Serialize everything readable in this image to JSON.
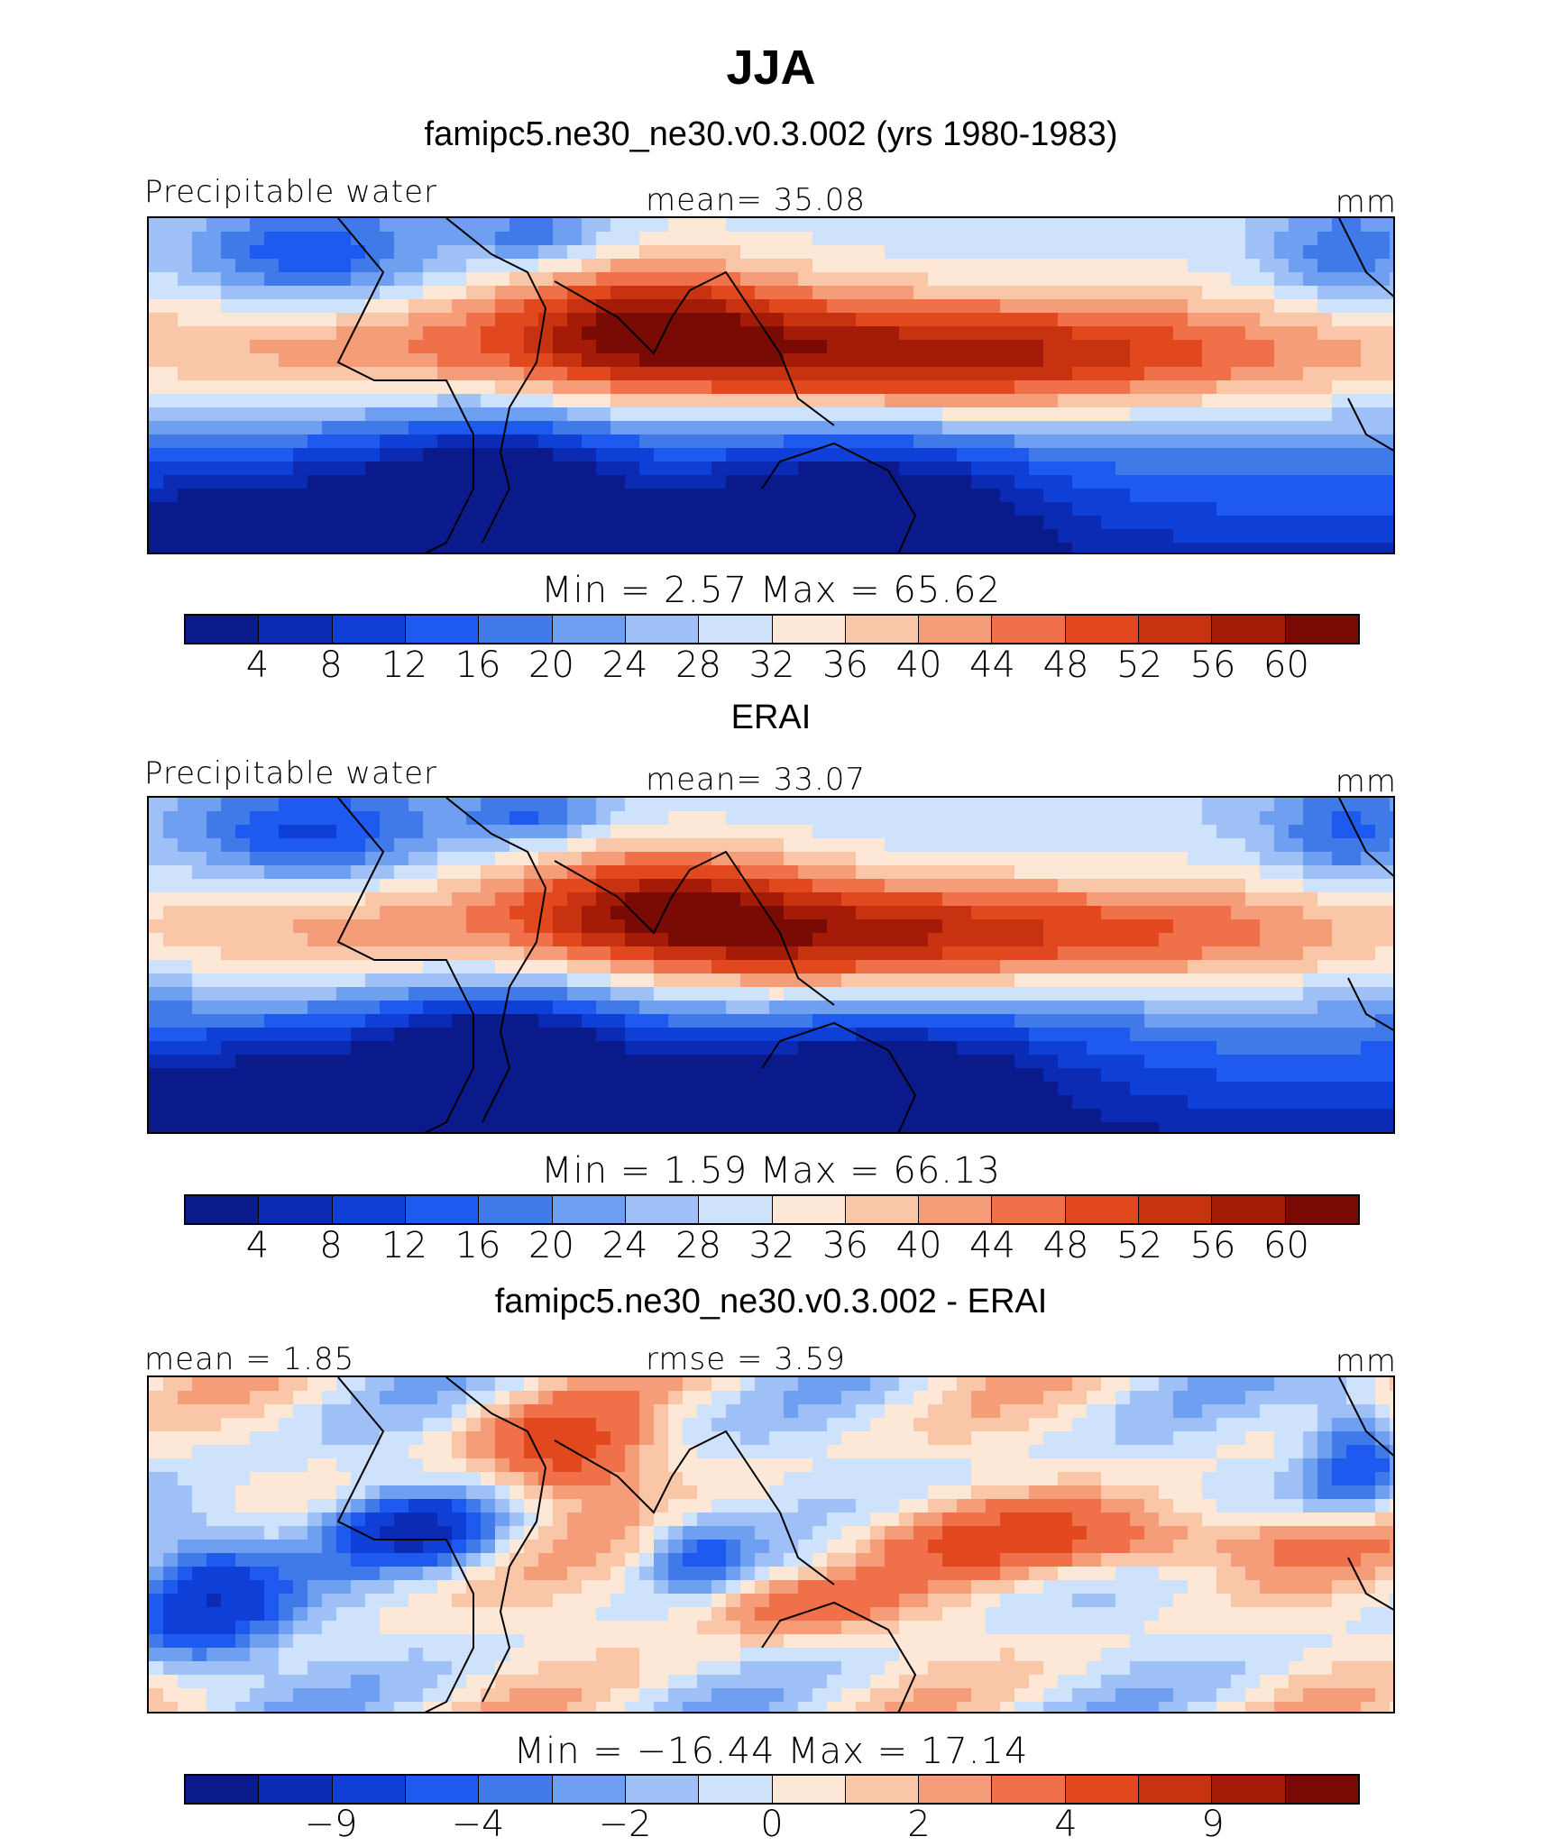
{
  "figure": {
    "title": "JJA",
    "colors": [
      "#0a1a8a",
      "#0c2bb4",
      "#0e3fd6",
      "#1e5af0",
      "#3f7ae8",
      "#6e9ff0",
      "#9fc0f7",
      "#cfe2fb",
      "#fde7d7",
      "#f9c6a8",
      "#f59d78",
      "#f0704a",
      "#e2481e",
      "#c73210",
      "#a41c08",
      "#7a0a04"
    ]
  },
  "panels": [
    {
      "subtitle": "famipc5.ne30_ne30.v0.3.002 (yrs 1980-1983)",
      "left_label": "Precipitable water",
      "center_label": "mean=   35.08",
      "right_label": "mm",
      "stats_label": "Min  =     2.57  Max  =    65.62",
      "field": "model",
      "colorbar_ticks": [
        "4",
        "8",
        "12",
        "16",
        "20",
        "24",
        "28",
        "32",
        "36",
        "40",
        "44",
        "48",
        "52",
        "56",
        "60"
      ]
    },
    {
      "subtitle": "ERAI",
      "left_label": "Precipitable water",
      "center_label": "mean=   33.07",
      "right_label": "mm",
      "stats_label": "Min  =     1.59  Max  =    66.13",
      "field": "obs",
      "colorbar_ticks": [
        "4",
        "8",
        "12",
        "16",
        "20",
        "24",
        "28",
        "32",
        "36",
        "40",
        "44",
        "48",
        "52",
        "56",
        "60"
      ]
    },
    {
      "subtitle": "famipc5.ne30_ne30.v0.3.002 - ERAI",
      "left_label": "mean  =    1.85",
      "center_label": "rmse  =    3.59",
      "right_label": "mm",
      "stats_label": "Min  = −16.44  Max  =   17.14",
      "field": "diff",
      "colorbar_ticks": [
        "−9",
        "−4",
        "−2",
        "0",
        "2",
        "4",
        "9"
      ]
    }
  ]
}
